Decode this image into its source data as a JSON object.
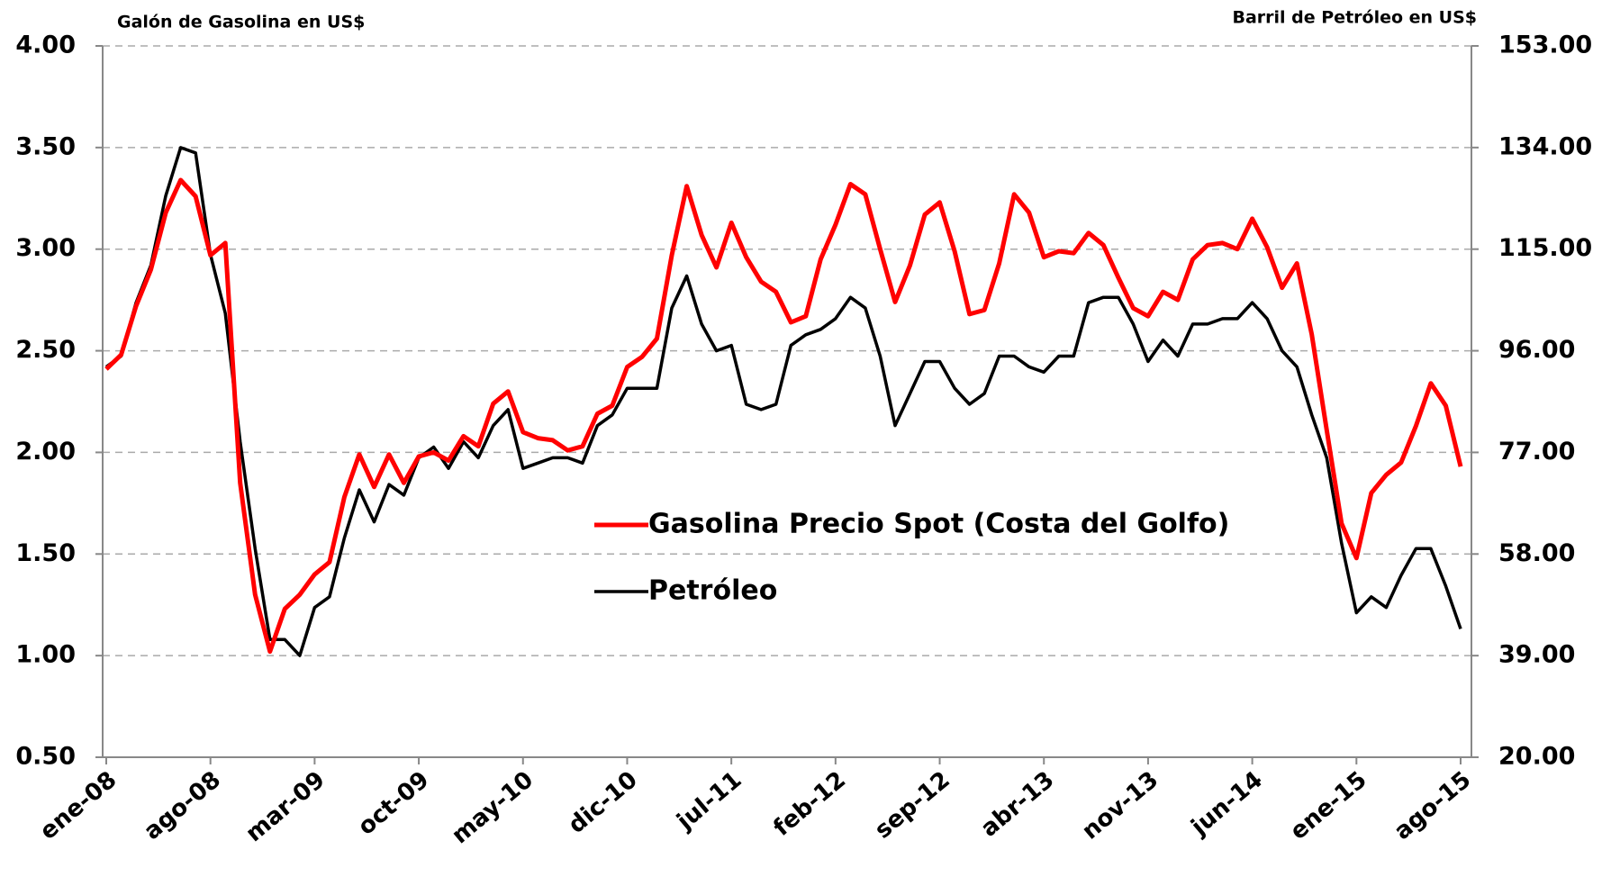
{
  "chart_data": {
    "type": "line",
    "y_axis_title": "Galón de Gasolina en US$",
    "y2_axis_title": "Barril de Petróleo en US$",
    "categories": [
      "ene-08",
      null,
      null,
      null,
      null,
      null,
      null,
      "ago-08",
      null,
      null,
      null,
      null,
      null,
      null,
      "mar-09",
      null,
      null,
      null,
      null,
      null,
      null,
      "oct-09",
      null,
      null,
      null,
      null,
      null,
      null,
      "may-10",
      null,
      null,
      null,
      null,
      null,
      null,
      "dic-10",
      null,
      null,
      null,
      null,
      null,
      null,
      "jul-11",
      null,
      null,
      null,
      null,
      null,
      null,
      "feb-12",
      null,
      null,
      null,
      null,
      null,
      null,
      "sep-12",
      null,
      null,
      null,
      null,
      null,
      null,
      "abr-13",
      null,
      null,
      null,
      null,
      null,
      null,
      "nov-13",
      null,
      null,
      null,
      null,
      null,
      null,
      "jun-14",
      null,
      null,
      null,
      null,
      null,
      null,
      "ene-15",
      null,
      null,
      null,
      null,
      null,
      null,
      "ago-15"
    ],
    "ylim": [
      0.5,
      4.0
    ],
    "yticks": [
      {
        "value": 0.5,
        "label": "0.50"
      },
      {
        "value": 1,
        "label": "1.00"
      },
      {
        "value": 1.5,
        "label": "1.50"
      },
      {
        "value": 2,
        "label": "2.00"
      },
      {
        "value": 2.5,
        "label": "2.50"
      },
      {
        "value": 3,
        "label": "3.00"
      },
      {
        "value": 3.5,
        "label": "3.50"
      },
      {
        "value": 4,
        "label": "4.00"
      }
    ],
    "y2lim": [
      20,
      153
    ],
    "y2ticks": [
      {
        "value": 20,
        "label": "20.00"
      },
      {
        "value": 39,
        "label": "39.00"
      },
      {
        "value": 58,
        "label": "58.00"
      },
      {
        "value": 77,
        "label": "77.00"
      },
      {
        "value": 96,
        "label": "96.00"
      },
      {
        "value": 115,
        "label": "115.00"
      },
      {
        "value": 134,
        "label": "134.00"
      },
      {
        "value": 153,
        "label": "153.00"
      }
    ],
    "grid": true,
    "legend_position": "center",
    "series": [
      {
        "name": "Gasolina Precio Spot (Costa del Golfo)",
        "color": "#ff0000",
        "values": [
          2.41,
          2.48,
          2.72,
          2.9,
          3.18,
          3.34,
          3.26,
          2.97,
          3.03,
          1.85,
          1.3,
          1.02,
          1.23,
          1.3,
          1.4,
          1.46,
          1.78,
          1.99,
          1.83,
          1.99,
          1.85,
          1.98,
          2.0,
          1.96,
          2.08,
          2.03,
          2.24,
          2.3,
          2.1,
          2.07,
          2.06,
          2.01,
          2.03,
          2.19,
          2.23,
          2.42,
          2.47,
          2.56,
          2.97,
          3.31,
          3.07,
          2.91,
          3.13,
          2.96,
          2.84,
          2.79,
          2.64,
          2.67,
          2.95,
          3.12,
          3.32,
          3.27,
          3.0,
          2.74,
          2.92,
          3.17,
          3.23,
          2.99,
          2.68,
          2.7,
          2.93,
          3.27,
          3.18,
          2.96,
          2.99,
          2.98,
          3.08,
          3.02,
          2.86,
          2.71,
          2.67,
          2.79,
          2.75,
          2.95,
          3.02,
          3.03,
          3.0,
          3.15,
          3.01,
          2.81,
          2.93,
          2.58,
          2.11,
          1.65,
          1.48,
          1.8,
          1.89,
          1.95,
          2.13,
          2.34,
          2.23,
          1.93
        ]
      },
      {
        "name": "Petróleo",
        "color": "#000000",
        "axis": "y2",
        "values": [
          93,
          95,
          105,
          112,
          125,
          134,
          133,
          114,
          103,
          79,
          59,
          42,
          42,
          39,
          48,
          50,
          61,
          70,
          64,
          71,
          69,
          76,
          78,
          74,
          79,
          76,
          82,
          85,
          74,
          75,
          76,
          76,
          75,
          82,
          84,
          89,
          89,
          89,
          104,
          110,
          101,
          96,
          97,
          86,
          85,
          86,
          97,
          99,
          100,
          102,
          106,
          104,
          95,
          82,
          88,
          94,
          94,
          89,
          86,
          88,
          95,
          95,
          93,
          92,
          95,
          95,
          105,
          106,
          106,
          101,
          94,
          98,
          95,
          101,
          101,
          102,
          102,
          105,
          102,
          96,
          93,
          84,
          76,
          60,
          47,
          50,
          48,
          54,
          59,
          59,
          52,
          44
        ]
      }
    ]
  }
}
